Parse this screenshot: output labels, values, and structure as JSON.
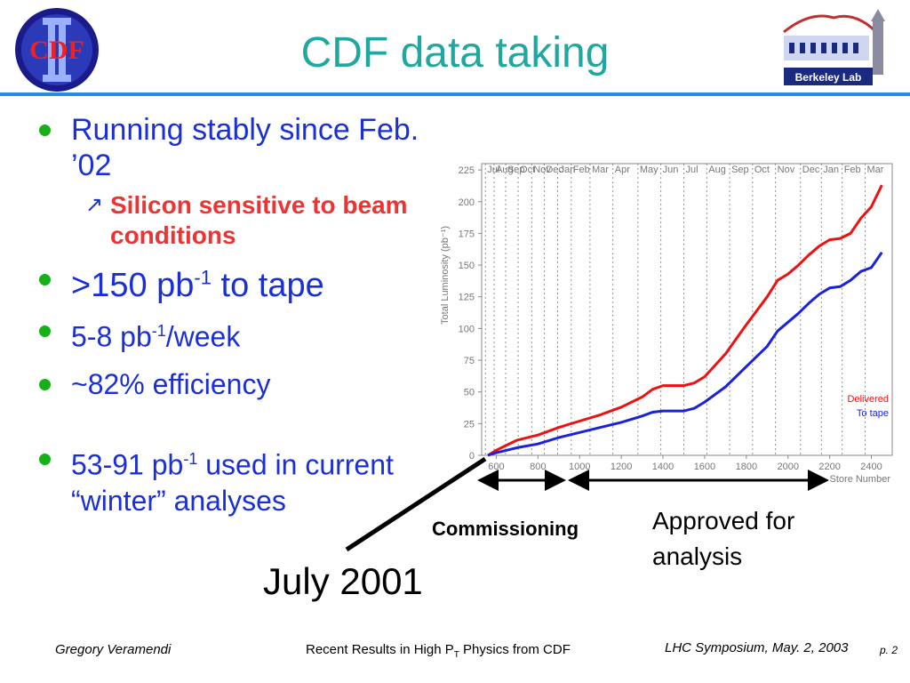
{
  "slide": {
    "title": "CDF data taking",
    "logo_left_text": "CDF",
    "logo_right_text": "Berkeley Lab"
  },
  "bullets": [
    {
      "text": "Running stably since Feb. ’02"
    },
    {
      "sub": "Silicon sensitive to beam conditions"
    },
    {
      "pre": ">150 pb",
      "sup": "-1",
      "post": " to tape"
    },
    {
      "pre": "5-8 pb",
      "sup": "-1",
      "post": "/week"
    },
    {
      "text": "~82% efficiency"
    },
    {
      "pre": "53-91 pb",
      "sup": "-1",
      "post": " used in current “winter” analyses"
    }
  ],
  "annotations": {
    "commissioning": "Commissioning",
    "approved": "Approved for analysis",
    "july": "July 2001"
  },
  "footer": {
    "author": "Gregory Veramendi",
    "talk_pre": "Recent Results in High P",
    "talk_sub": "T",
    "talk_post": " Physics from CDF",
    "event": "LHC Symposium, May. 2, 2003",
    "page": "p. 2"
  },
  "chart_data": {
    "type": "line",
    "xlabel": "Store Number",
    "ylabel": "Total Luminosity (pb⁻¹)",
    "xlim": [
      530,
      2500
    ],
    "ylim": [
      0,
      230
    ],
    "xticks": [
      600,
      800,
      1000,
      1200,
      1400,
      1600,
      1800,
      2000,
      2200,
      2400
    ],
    "yticks": [
      0,
      25,
      50,
      75,
      100,
      125,
      150,
      175,
      200,
      225
    ],
    "months": [
      {
        "label": "Jul",
        "x": 548
      },
      {
        "label": "Aug",
        "x": 590
      },
      {
        "label": "Sep",
        "x": 645
      },
      {
        "label": "Oct",
        "x": 705
      },
      {
        "label": "Nov",
        "x": 770
      },
      {
        "label": "Dec",
        "x": 830
      },
      {
        "label": "Jan",
        "x": 895
      },
      {
        "label": "Feb",
        "x": 960
      },
      {
        "label": "Mar",
        "x": 1050
      },
      {
        "label": "Apr",
        "x": 1160
      },
      {
        "label": "May",
        "x": 1280
      },
      {
        "label": "Jun",
        "x": 1390
      },
      {
        "label": "Jul",
        "x": 1500
      },
      {
        "label": "Aug",
        "x": 1610
      },
      {
        "label": "Sep",
        "x": 1720
      },
      {
        "label": "Oct",
        "x": 1830
      },
      {
        "label": "Nov",
        "x": 1940
      },
      {
        "label": "Dec",
        "x": 2060
      },
      {
        "label": "Jan",
        "x": 2160
      },
      {
        "label": "Feb",
        "x": 2260
      },
      {
        "label": "Mar",
        "x": 2370
      }
    ],
    "series": [
      {
        "name": "Delivered",
        "color": "#ee1111",
        "x": [
          560,
          600,
          650,
          700,
          800,
          900,
          1000,
          1100,
          1200,
          1300,
          1350,
          1400,
          1500,
          1550,
          1600,
          1700,
          1800,
          1900,
          1950,
          2000,
          2050,
          2100,
          2150,
          2200,
          2250,
          2300,
          2350,
          2400,
          2450
        ],
        "y": [
          0,
          4,
          8,
          12,
          16,
          22,
          27,
          32,
          38,
          46,
          52,
          55,
          55,
          57,
          62,
          80,
          103,
          125,
          138,
          143,
          150,
          158,
          165,
          170,
          171,
          175,
          187,
          196,
          213
        ]
      },
      {
        "name": "To tape",
        "color": "#1a22dd",
        "x": [
          560,
          600,
          650,
          700,
          800,
          900,
          1000,
          1100,
          1200,
          1300,
          1350,
          1400,
          1500,
          1550,
          1600,
          1700,
          1800,
          1900,
          1950,
          2000,
          2050,
          2100,
          2150,
          2200,
          2250,
          2300,
          2350,
          2400,
          2450
        ],
        "y": [
          0,
          2,
          4,
          6,
          9,
          14,
          18,
          22,
          26,
          31,
          34,
          35,
          35,
          37,
          42,
          54,
          70,
          86,
          98,
          105,
          112,
          120,
          127,
          132,
          133,
          138,
          145,
          148,
          160
        ]
      }
    ]
  }
}
